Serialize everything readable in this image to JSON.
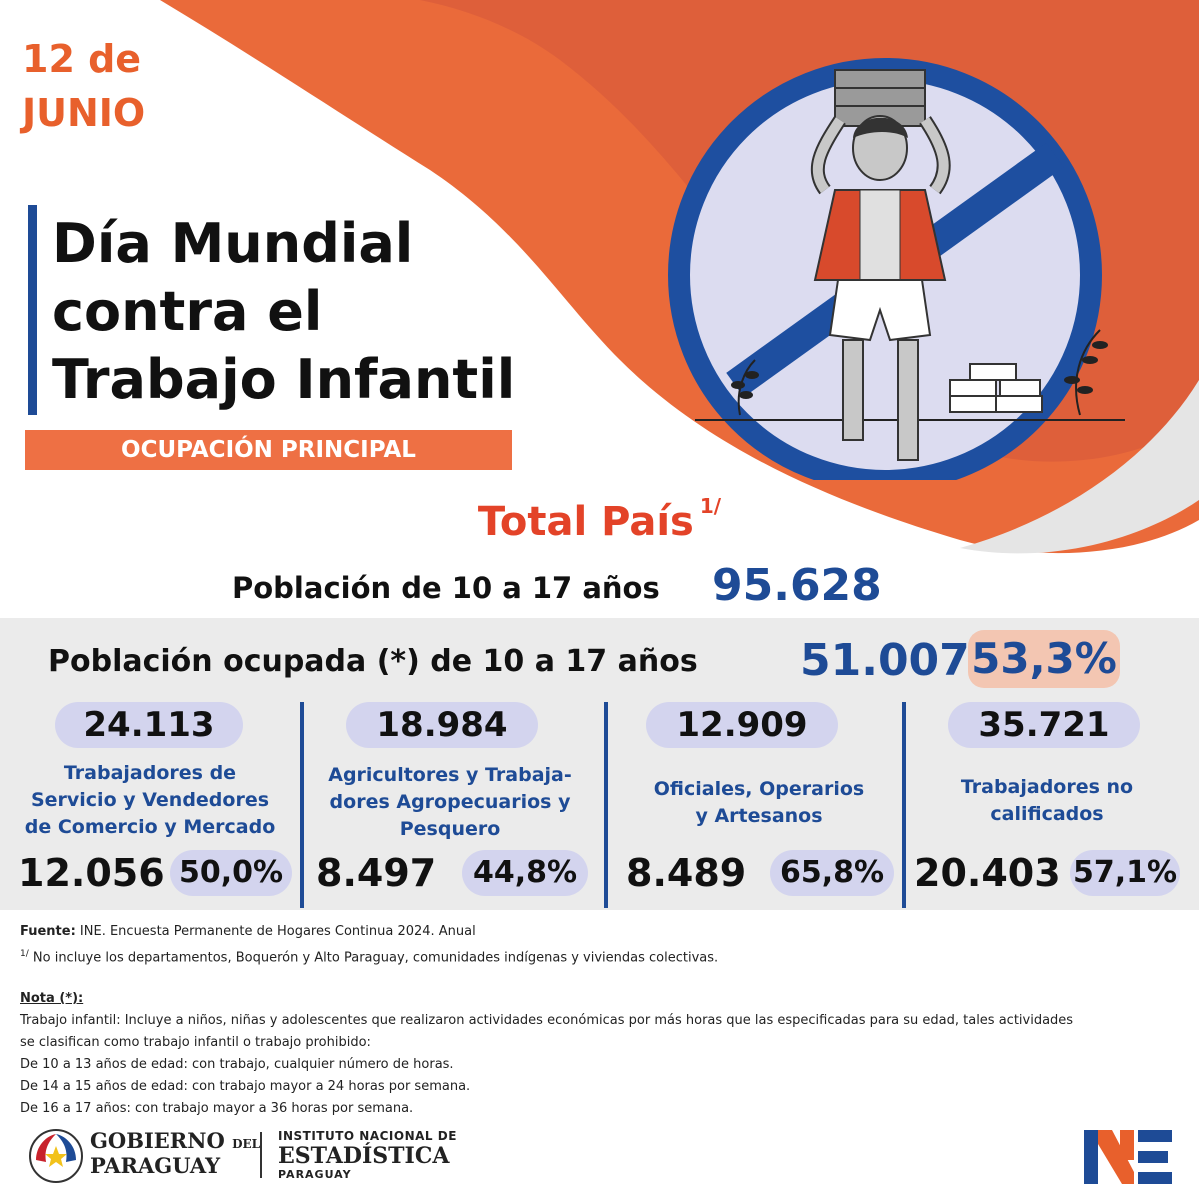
{
  "header": {
    "date_line1": "12 de",
    "date_line2": "JUNIO",
    "title_line1": "Día Mundial",
    "title_line2": "contra el",
    "title_line3": "Trabajo Infantil",
    "banner": "OCUPACIÓN PRINCIPAL"
  },
  "total": {
    "label": "Total País",
    "footnote_mark": "1/"
  },
  "population": {
    "label": "Población de 10 a 17 años",
    "value": "95.628"
  },
  "occupied": {
    "label": "Población ocupada (*)  de 10 a 17 años",
    "value": "51.007",
    "percent": "53,3%"
  },
  "categories": [
    {
      "total": "24.113",
      "label_lines": [
        "Trabajadores de",
        "Servicio y Vendedores",
        "de Comercio y Mercado"
      ],
      "count": "12.056",
      "percent": "50,0%"
    },
    {
      "total": "18.984",
      "label_lines": [
        "Agricultores y Trabaja-",
        "dores Agropecuarios y",
        "Pesquero"
      ],
      "count": "8.497",
      "percent": "44,8%"
    },
    {
      "total": "12.909",
      "label_lines": [
        "Oficiales, Operarios",
        "y Artesanos"
      ],
      "count": "8.489",
      "percent": "65,8%"
    },
    {
      "total": "35.721",
      "label_lines": [
        "Trabajadores no",
        "calificados"
      ],
      "count": "20.403",
      "percent": "57,1%"
    }
  ],
  "source": {
    "label": "Fuente:",
    "text": " INE. Encuesta Permanente de Hogares Continua 2024. Anual",
    "footnote_mark": "1/",
    "footnote": " No incluye los departamentos, Boquerón y Alto Paraguay, comunidades indígenas y viviendas colectivas."
  },
  "note": {
    "title": "Nota (*):",
    "line1": "Trabajo infantil: Incluye a niños, niñas y adolescentes que realizaron actividades económicas por más horas que las especificadas para su edad, tales actividades",
    "line2": "se clasifican como trabajo infantil o trabajo prohibido:",
    "line3": "De 10 a 13 años de edad: con trabajo, cualquier número de horas.",
    "line4": "De 14 a 15 años de edad: con trabajo mayor a 24 horas por semana.",
    "line5": "De 16 a 17 años: con trabajo mayor a 36 horas por semana."
  },
  "logos": {
    "gov_line1": "GOBIERNO",
    "gov_del": "DEL",
    "gov_line2": "PARAGUAY",
    "ine_line1": "INSTITUTO NACIONAL DE",
    "ine_line2": "ESTADÍSTICA",
    "ine_line3": "PARAGUAY"
  },
  "colors": {
    "orange": "#e8602c",
    "blue": "#1e4b96",
    "red": "#e34328",
    "pill": "#d3d4ee",
    "gray_band": "#ebebeb"
  },
  "icons": [
    "no-child-labor-illustration",
    "paraguay-seal-icon",
    "ine-logo-icon"
  ]
}
